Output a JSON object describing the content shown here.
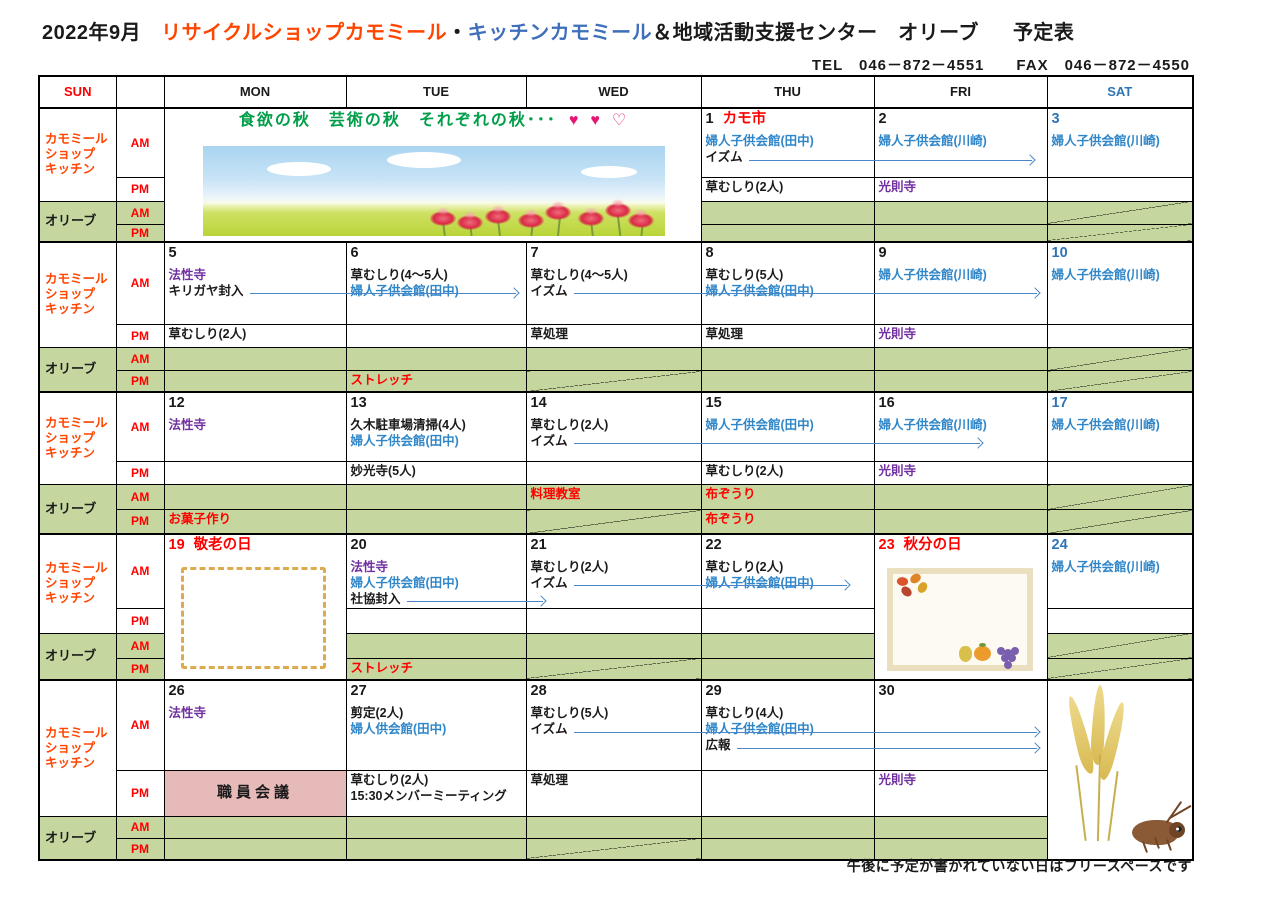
{
  "title": {
    "parts": [
      {
        "text": "2022年9月",
        "color": "#1a1a1a"
      },
      {
        "text": "リサイクルショップカモミール",
        "color": "#ff4500"
      },
      {
        "text": "・",
        "color": "#1a1a1a"
      },
      {
        "text": "キッチンカモミール",
        "color": "#3f6fba"
      },
      {
        "text": "＆地域活動支援センター　オリーブ",
        "color": "#1a1a1a"
      },
      {
        "text": "予定表",
        "color": "#1a1a1a"
      }
    ]
  },
  "contact": "TEL　046－872－4551　　FAX　046－872－4550",
  "day_headers": [
    "SUN",
    "",
    "MON",
    "TUE",
    "WED",
    "THU",
    "FRI",
    "SAT"
  ],
  "labels": {
    "shop_lines": [
      "カモミール",
      "ショップ",
      "キッチン"
    ],
    "olive": "オリーブ",
    "am": "AM",
    "pm": "PM"
  },
  "banner": {
    "caption": "食欲の秋　芸術の秋　それぞれの秋･･･",
    "hearts": [
      "♥",
      "♥",
      "♡"
    ]
  },
  "footer_note": "午後に予定が書かれていない日はフリースペースです",
  "colors": {
    "text_black": "#1a1a1a",
    "schedule_blue": "#2f86c9",
    "temple_purple": "#7030a0",
    "event_red": "#ff0000",
    "sat_blue": "#2e75b6",
    "shop_orange": "#ff4500",
    "olive_green_row": "#c5d79e",
    "meeting_pink": "#e7baba",
    "caption_green": "#009e49",
    "heart_pink": "#e61673",
    "arrow_blue": "#4a86c8"
  },
  "weeks": [
    {
      "days": [
        {
          "type": "banner"
        },
        {
          "type": "skip"
        },
        {
          "type": "skip"
        },
        {
          "date": "1",
          "dc": "k",
          "holiday": "カモ市",
          "am": [
            {
              "t": "婦人子供会館(田中)",
              "c": "b"
            },
            {
              "t": "イズム",
              "c": "k",
              "arrow": {
                "to": 4,
                "frac": 0.92
              }
            }
          ],
          "pm": [
            {
              "t": "草むしり(2人)",
              "c": "k"
            }
          ],
          "oam": [],
          "opm": []
        },
        {
          "date": "2",
          "dc": "k",
          "am": [
            {
              "t": "婦人子供会館(川崎)",
              "c": "b"
            }
          ],
          "pm": [
            {
              "t": "光則寺",
              "c": "p"
            }
          ],
          "oam": [],
          "opm": []
        },
        {
          "date": "3",
          "dc": "s",
          "am": [
            {
              "t": "婦人子供会館(川崎)",
              "c": "b"
            }
          ],
          "pm": [],
          "oam": [],
          "opm": [],
          "oam_slash": true,
          "opm_slash": true
        }
      ]
    },
    {
      "days": [
        {
          "date": "5",
          "dc": "k",
          "am": [
            {
              "t": "法性寺",
              "c": "p"
            },
            {
              "t": "キリガヤ封入",
              "c": "k",
              "arrow": {
                "to": 1,
                "frac": 0.95
              }
            }
          ],
          "pm": [
            {
              "t": "草むしり(2人)",
              "c": "k"
            }
          ],
          "oam": [],
          "opm": []
        },
        {
          "date": "6",
          "dc": "k",
          "am": [
            {
              "t": "草むしり(4～5人)",
              "c": "k"
            },
            {
              "t": "婦人子供会館(田中)",
              "c": "b"
            }
          ],
          "pm": [],
          "oam": [],
          "opm": [
            {
              "t": "ストレッチ",
              "c": "r"
            }
          ]
        },
        {
          "date": "7",
          "dc": "k",
          "am": [
            {
              "t": "草むしり(4～5人)",
              "c": "k"
            },
            {
              "t": "イズム",
              "c": "k",
              "arrow": {
                "to": 4,
                "frac": 0.95
              }
            }
          ],
          "pm": [
            {
              "t": "草処理",
              "c": "k"
            }
          ],
          "oam": [],
          "opm": [],
          "opm_slash": true
        },
        {
          "date": "8",
          "dc": "k",
          "am": [
            {
              "t": "草むしり(5人)",
              "c": "k"
            },
            {
              "t": "婦人子供会館(田中)",
              "c": "b"
            }
          ],
          "pm": [
            {
              "t": "草処理",
              "c": "k"
            }
          ],
          "oam": [],
          "opm": []
        },
        {
          "date": "9",
          "dc": "k",
          "am": [
            {
              "t": "婦人子供会館(川崎)",
              "c": "b"
            }
          ],
          "pm": [
            {
              "t": "光則寺",
              "c": "p"
            }
          ],
          "oam": [],
          "opm": []
        },
        {
          "date": "10",
          "dc": "s",
          "am": [
            {
              "t": "婦人子供会館(川崎)",
              "c": "b"
            }
          ],
          "pm": [],
          "oam": [],
          "opm": [],
          "oam_slash": true,
          "opm_slash": true
        }
      ]
    },
    {
      "days": [
        {
          "date": "12",
          "dc": "k",
          "am": [
            {
              "t": "法性寺",
              "c": "p"
            }
          ],
          "pm": [],
          "oam": [],
          "opm": [
            {
              "t": "お菓子作り",
              "c": "r"
            }
          ]
        },
        {
          "date": "13",
          "dc": "k",
          "am": [
            {
              "t": "久木駐車場清掃(4人)",
              "c": "k"
            },
            {
              "t": "婦人子供会館(田中)",
              "c": "b"
            }
          ],
          "pm": [
            {
              "t": "妙光寺(5人)",
              "c": "k"
            }
          ],
          "oam": [],
          "opm": []
        },
        {
          "date": "14",
          "dc": "k",
          "am": [
            {
              "t": "草むしり(2人)",
              "c": "k"
            },
            {
              "t": "イズム",
              "c": "k",
              "arrow": {
                "to": 4,
                "frac": 0.62
              }
            }
          ],
          "pm": [],
          "oam": [
            {
              "t": "料理教室",
              "c": "r"
            }
          ],
          "opm": [],
          "opm_slash": true
        },
        {
          "date": "15",
          "dc": "k",
          "am": [
            {
              "t": "婦人子供会館(田中)",
              "c": "b"
            }
          ],
          "pm": [
            {
              "t": "草むしり(2人)",
              "c": "k"
            }
          ],
          "oam": [
            {
              "t": "布ぞうり",
              "c": "r"
            }
          ],
          "opm": [
            {
              "t": "布ぞうり",
              "c": "r"
            }
          ]
        },
        {
          "date": "16",
          "dc": "k",
          "am": [
            {
              "t": "婦人子供会館(川崎)",
              "c": "b"
            }
          ],
          "pm": [
            {
              "t": "光則寺",
              "c": "p"
            }
          ],
          "oam": [],
          "opm": []
        },
        {
          "date": "17",
          "dc": "s",
          "am": [
            {
              "t": "婦人子供会館(川崎)",
              "c": "b"
            }
          ],
          "pm": [],
          "oam": [],
          "opm": [],
          "oam_slash": true,
          "opm_slash": true
        }
      ]
    },
    {
      "days": [
        {
          "type": "frame19",
          "date": "19",
          "dc": "r",
          "holiday": "敬老の日"
        },
        {
          "date": "20",
          "dc": "k",
          "am": [
            {
              "t": "法性寺",
              "c": "p"
            },
            {
              "t": "婦人子供会館(田中)",
              "c": "b"
            },
            {
              "t": "社協封入",
              "c": "k",
              "arrow": {
                "to": 2,
                "frac": 0.1
              }
            }
          ],
          "pm": [],
          "oam": [],
          "opm": [
            {
              "t": "ストレッチ",
              "c": "r"
            }
          ]
        },
        {
          "date": "21",
          "dc": "k",
          "am": [
            {
              "t": "草むしり(2人)",
              "c": "k"
            },
            {
              "t": "イズム",
              "c": "k",
              "arrow": {
                "to": 3,
                "frac": 0.85
              }
            }
          ],
          "pm": [],
          "oam": [],
          "opm": [],
          "opm_slash": true
        },
        {
          "date": "22",
          "dc": "k",
          "am": [
            {
              "t": "草むしり(2人)",
              "c": "k"
            },
            {
              "t": "婦人子供会館(田中)",
              "c": "b"
            }
          ],
          "pm": [],
          "oam": [],
          "opm": []
        },
        {
          "type": "frame23",
          "date": "23",
          "dc": "r",
          "holiday": "秋分の日"
        },
        {
          "date": "24",
          "dc": "s",
          "am": [
            {
              "t": "婦人子供会館(川崎)",
              "c": "b"
            }
          ],
          "pm": [],
          "oam": [],
          "opm": [],
          "oam_slash": true,
          "opm_slash": true
        }
      ]
    },
    {
      "days": [
        {
          "date": "26",
          "dc": "k",
          "am": [
            {
              "t": "法性寺",
              "c": "p"
            }
          ],
          "pm": [],
          "pm_special": "職員会議",
          "oam": [],
          "opm": []
        },
        {
          "date": "27",
          "dc": "k",
          "am": [
            {
              "t": "剪定(2人)",
              "c": "k"
            },
            {
              "t": "婦人供会館(田中)",
              "c": "b"
            }
          ],
          "pm": [
            {
              "t": "草むしり(2人)",
              "c": "k"
            },
            {
              "t": "15:30メンバーミーティング",
              "c": "k"
            }
          ],
          "oam": [],
          "opm": []
        },
        {
          "date": "28",
          "dc": "k",
          "am": [
            {
              "t": "草むしり(5人)",
              "c": "k"
            },
            {
              "t": "イズム",
              "c": "k",
              "arrow": {
                "to": 4,
                "frac": 0.95
              }
            }
          ],
          "pm": [
            {
              "t": "草処理",
              "c": "k"
            }
          ],
          "oam": [],
          "opm": [],
          "opm_slash": true
        },
        {
          "date": "29",
          "dc": "k",
          "am": [
            {
              "t": "草むしり(4人)",
              "c": "k"
            },
            {
              "t": "婦人子供会館(田中)",
              "c": "b"
            },
            {
              "t": "広報",
              "c": "k",
              "arrow": {
                "to": 4,
                "frac": 0.95
              }
            }
          ],
          "pm": [],
          "oam": [],
          "opm": []
        },
        {
          "date": "30",
          "dc": "k",
          "am": [],
          "pm": [
            {
              "t": "光則寺",
              "c": "p"
            }
          ],
          "oam": [],
          "opm": []
        },
        {
          "type": "sat_art"
        }
      ]
    }
  ]
}
